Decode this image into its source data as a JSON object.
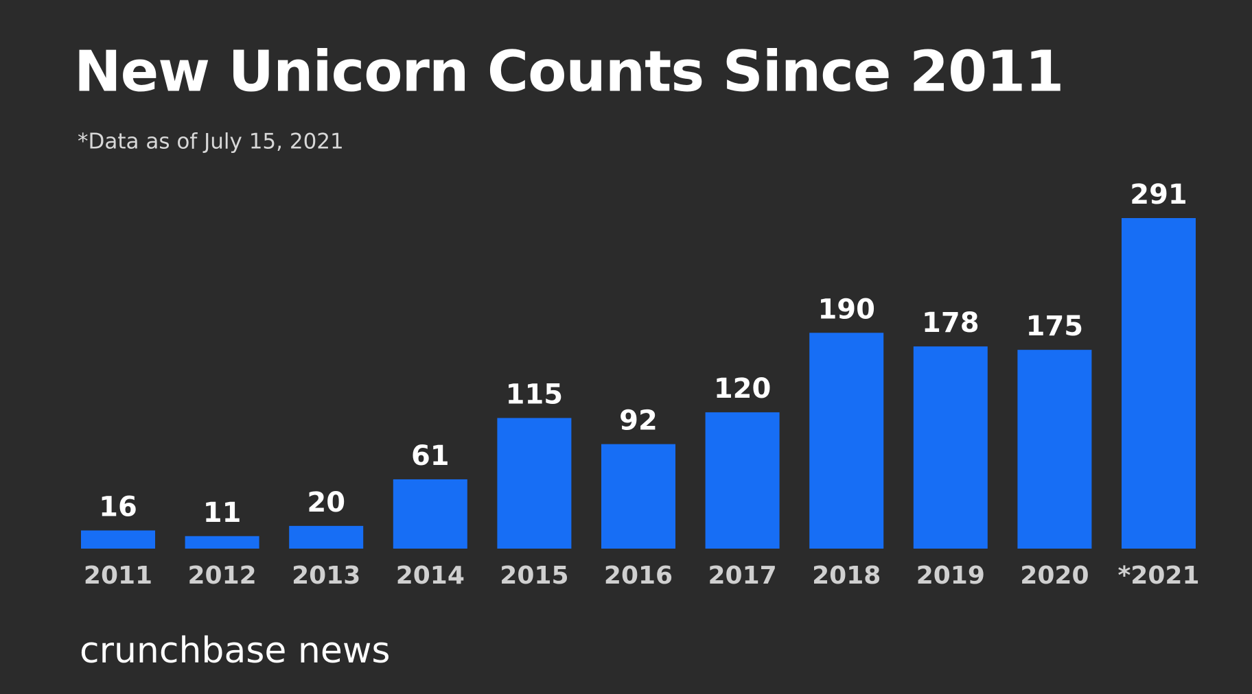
{
  "chart_data": {
    "type": "bar",
    "title": "New Unicorn Counts Since 2011",
    "subtitle": "*Data as of July 15, 2021",
    "categories": [
      "2011",
      "2012",
      "2013",
      "2014",
      "2015",
      "2016",
      "2017",
      "2018",
      "2019",
      "2020",
      "*2021"
    ],
    "values": [
      16,
      11,
      20,
      61,
      115,
      92,
      120,
      190,
      178,
      175,
      291
    ],
    "color": "#176ef5",
    "source": "crunchbase news"
  }
}
